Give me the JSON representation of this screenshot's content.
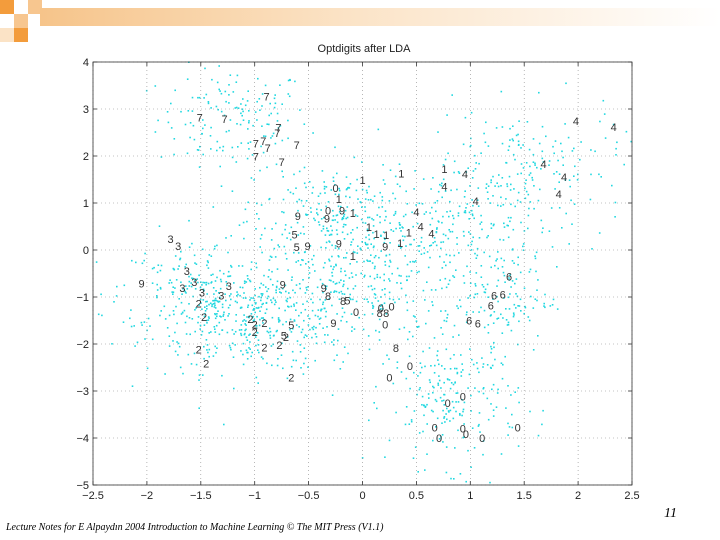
{
  "slide": {
    "footer": "Lecture Notes for E Alpaydın 2004 Introduction to Machine Learning © The MIT Press (V1.1)",
    "page_number": "11",
    "accent_colors": [
      "#f39c3c",
      "#f7c68f",
      "#fbe3c6"
    ]
  },
  "chart_data": {
    "type": "scatter",
    "title": "Optdigits after LDA",
    "xlabel": "",
    "ylabel": "",
    "xlim": [
      -2.5,
      2.5
    ],
    "ylim": [
      -5,
      4
    ],
    "xticks": [
      -2.5,
      -2,
      -1.5,
      -1,
      -0.5,
      0,
      0.5,
      1,
      1.5,
      2,
      2.5
    ],
    "yticks": [
      -5,
      -4,
      -3,
      -2,
      -1,
      0,
      1,
      2,
      3,
      4
    ],
    "xtick_labels": [
      "−2.5",
      "−2",
      "−1.5",
      "−1",
      "−0.5",
      "0",
      "0.5",
      "1",
      "1.5",
      "2",
      "2.5"
    ],
    "ytick_labels": [
      "−5",
      "−4",
      "−3",
      "−2",
      "−1",
      "0",
      "1",
      "2",
      "3",
      "4"
    ],
    "grid": true,
    "point_color": "#22d8e0",
    "clusters": [
      {
        "cx": -1.2,
        "cy": 2.8,
        "sx": 0.35,
        "sy": 0.55,
        "n": 150
      },
      {
        "cx": -1.0,
        "cy": -1.5,
        "sx": 0.5,
        "sy": 0.55,
        "n": 420
      },
      {
        "cx": -1.55,
        "cy": -0.8,
        "sx": 0.35,
        "sy": 0.5,
        "n": 150
      },
      {
        "cx": -0.3,
        "cy": 0.8,
        "sx": 0.35,
        "sy": 0.5,
        "n": 160
      },
      {
        "cx": 0.0,
        "cy": -0.8,
        "sx": 0.45,
        "sy": 0.55,
        "n": 180
      },
      {
        "cx": 0.85,
        "cy": -3.2,
        "sx": 0.3,
        "sy": 0.7,
        "n": 220
      },
      {
        "cx": 1.5,
        "cy": 1.8,
        "sx": 0.45,
        "sy": 0.6,
        "n": 170
      },
      {
        "cx": 0.8,
        "cy": 0.7,
        "sx": 0.4,
        "sy": 0.55,
        "n": 110
      },
      {
        "cx": 1.25,
        "cy": -1.0,
        "sx": 0.25,
        "sy": 0.6,
        "n": 130
      },
      {
        "cx": 0.2,
        "cy": 0.2,
        "sx": 0.9,
        "sy": 0.8,
        "n": 250
      }
    ],
    "digits": [
      {
        "t": "7",
        "x": -0.89,
        "y": 3.27
      },
      {
        "t": "7",
        "x": -0.78,
        "y": 2.61
      },
      {
        "t": "7",
        "x": -1.51,
        "y": 2.82
      },
      {
        "t": "7",
        "x": -0.79,
        "y": 2.49
      },
      {
        "t": "7",
        "x": -0.92,
        "y": 2.32
      },
      {
        "t": "7",
        "x": -0.99,
        "y": 2.27
      },
      {
        "t": "7",
        "x": -0.61,
        "y": 2.23
      },
      {
        "t": "7",
        "x": -0.88,
        "y": 2.17
      },
      {
        "t": "7",
        "x": -0.75,
        "y": 1.87
      },
      {
        "t": "7",
        "x": -0.99,
        "y": 1.99
      },
      {
        "t": "7",
        "x": -1.28,
        "y": 2.79
      },
      {
        "t": "4",
        "x": 1.98,
        "y": 2.74
      },
      {
        "t": "4",
        "x": 2.33,
        "y": 2.62
      },
      {
        "t": "4",
        "x": 1.68,
        "y": 1.83
      },
      {
        "t": "4",
        "x": 1.87,
        "y": 1.55
      },
      {
        "t": "4",
        "x": 0.95,
        "y": 1.62
      },
      {
        "t": "4",
        "x": 0.76,
        "y": 1.35
      },
      {
        "t": "4",
        "x": 1.82,
        "y": 1.19
      },
      {
        "t": "4",
        "x": 1.05,
        "y": 1.04
      },
      {
        "t": "4",
        "x": 0.5,
        "y": 0.81
      },
      {
        "t": "4",
        "x": 0.54,
        "y": 0.5
      },
      {
        "t": "4",
        "x": 0.64,
        "y": 0.35
      },
      {
        "t": "1",
        "x": 0.0,
        "y": 1.49
      },
      {
        "t": "1",
        "x": 0.36,
        "y": 1.63
      },
      {
        "t": "1",
        "x": 0.76,
        "y": 1.72
      },
      {
        "t": "1",
        "x": -0.22,
        "y": 1.08
      },
      {
        "t": "1",
        "x": -0.09,
        "y": 0.79
      },
      {
        "t": "1",
        "x": 0.06,
        "y": 0.49
      },
      {
        "t": "1",
        "x": 0.13,
        "y": 0.34
      },
      {
        "t": "1",
        "x": 0.43,
        "y": 0.37
      },
      {
        "t": "1",
        "x": 0.22,
        "y": 0.32
      },
      {
        "t": "1",
        "x": 0.35,
        "y": 0.15
      },
      {
        "t": "1",
        "x": -0.09,
        "y": -0.13
      },
      {
        "t": "0",
        "x": -0.25,
        "y": 1.32
      },
      {
        "t": "0",
        "x": -0.32,
        "y": 0.84
      },
      {
        "t": "9",
        "x": -0.6,
        "y": 0.72
      },
      {
        "t": "9",
        "x": -0.19,
        "y": 0.84
      },
      {
        "t": "9",
        "x": -0.33,
        "y": 0.67
      },
      {
        "t": "9",
        "x": -0.51,
        "y": 0.09
      },
      {
        "t": "9",
        "x": -0.22,
        "y": 0.14
      },
      {
        "t": "9",
        "x": 0.21,
        "y": 0.07
      },
      {
        "t": "9",
        "x": -2.05,
        "y": -0.71
      },
      {
        "t": "9",
        "x": -0.74,
        "y": -0.73
      },
      {
        "t": "9",
        "x": -0.36,
        "y": -0.81
      },
      {
        "t": "9",
        "x": -0.27,
        "y": -1.55
      },
      {
        "t": "5",
        "x": -0.63,
        "y": 0.33
      },
      {
        "t": "5",
        "x": -0.61,
        "y": 0.06
      },
      {
        "t": "5",
        "x": -0.14,
        "y": -1.07
      },
      {
        "t": "5",
        "x": -0.66,
        "y": -1.6
      },
      {
        "t": "5",
        "x": -0.73,
        "y": -1.82
      },
      {
        "t": "3",
        "x": -1.78,
        "y": 0.23
      },
      {
        "t": "3",
        "x": -1.71,
        "y": 0.08
      },
      {
        "t": "3",
        "x": -1.63,
        "y": -0.45
      },
      {
        "t": "3",
        "x": -1.56,
        "y": -0.68
      },
      {
        "t": "3",
        "x": -1.67,
        "y": -0.81
      },
      {
        "t": "3",
        "x": -1.49,
        "y": -0.9
      },
      {
        "t": "3",
        "x": -1.24,
        "y": -0.77
      },
      {
        "t": "3",
        "x": -1.31,
        "y": -0.97
      },
      {
        "t": "2",
        "x": -1.52,
        "y": -1.14
      },
      {
        "t": "2",
        "x": -1.47,
        "y": -1.43
      },
      {
        "t": "2",
        "x": -1.04,
        "y": -1.47
      },
      {
        "t": "2",
        "x": -1.0,
        "y": -1.59
      },
      {
        "t": "2",
        "x": -0.91,
        "y": -1.55
      },
      {
        "t": "2",
        "x": -1.0,
        "y": -1.74
      },
      {
        "t": "2",
        "x": -0.71,
        "y": -1.85
      },
      {
        "t": "2",
        "x": -0.77,
        "y": -2.02
      },
      {
        "t": "2",
        "x": -0.91,
        "y": -2.07
      },
      {
        "t": "2",
        "x": -1.52,
        "y": -2.12
      },
      {
        "t": "2",
        "x": -1.45,
        "y": -2.42
      },
      {
        "t": "2",
        "x": -0.66,
        "y": -2.71
      },
      {
        "t": "8",
        "x": -0.18,
        "y": -1.08
      },
      {
        "t": "8",
        "x": -0.32,
        "y": -0.98
      },
      {
        "t": "8",
        "x": 0.16,
        "y": -1.34
      },
      {
        "t": "8",
        "x": 0.22,
        "y": -1.34
      },
      {
        "t": "8",
        "x": 0.31,
        "y": -2.09
      },
      {
        "t": "0",
        "x": 0.17,
        "y": -1.23
      },
      {
        "t": "0",
        "x": 0.27,
        "y": -1.2
      },
      {
        "t": "0",
        "x": -0.06,
        "y": -1.32
      },
      {
        "t": "0",
        "x": 0.21,
        "y": -1.59
      },
      {
        "t": "0",
        "x": 0.44,
        "y": -2.47
      },
      {
        "t": "0",
        "x": 0.25,
        "y": -2.71
      },
      {
        "t": "0",
        "x": 0.79,
        "y": -3.26
      },
      {
        "t": "0",
        "x": 0.93,
        "y": -3.12
      },
      {
        "t": "0",
        "x": 0.67,
        "y": -3.78
      },
      {
        "t": "0",
        "x": 0.71,
        "y": -4.0
      },
      {
        "t": "0",
        "x": 0.96,
        "y": -3.91
      },
      {
        "t": "0",
        "x": 1.11,
        "y": -4.0
      },
      {
        "t": "0",
        "x": 1.44,
        "y": -3.78
      },
      {
        "t": "0",
        "x": 0.93,
        "y": -3.8
      },
      {
        "t": "6",
        "x": 1.36,
        "y": -0.56
      },
      {
        "t": "6",
        "x": 1.22,
        "y": -0.97
      },
      {
        "t": "6",
        "x": 1.3,
        "y": -0.95
      },
      {
        "t": "6",
        "x": 1.19,
        "y": -1.18
      },
      {
        "t": "6",
        "x": 0.99,
        "y": -1.5
      },
      {
        "t": "6",
        "x": 1.07,
        "y": -1.56
      }
    ]
  }
}
